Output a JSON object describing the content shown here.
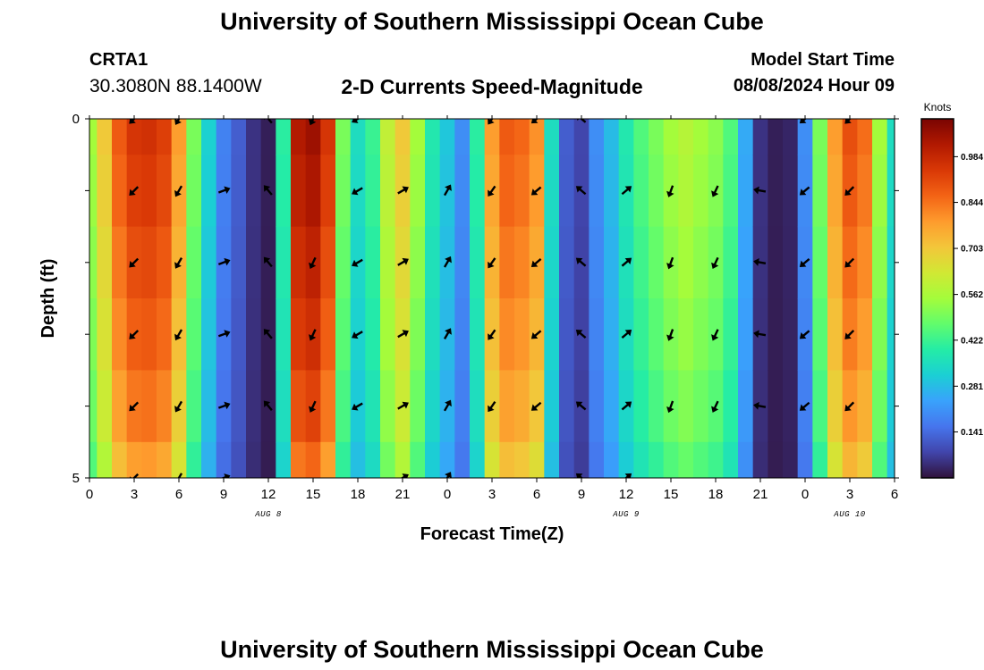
{
  "header": {
    "title": "University of Southern Mississippi Ocean Cube",
    "station": "CRTA1",
    "coordinates": "30.3080N  88.1400W",
    "subtitle": "2-D Currents Speed-Magnitude",
    "model_start_label": "Model Start Time",
    "model_start_value": "08/08/2024 Hour 09"
  },
  "footer": {
    "title": "University of Southern Mississippi Ocean Cube"
  },
  "colors": {
    "colormap": [
      "#30123b",
      "#4145ab",
      "#4675ed",
      "#39a2fc",
      "#1bcfd4",
      "#24eca6",
      "#61fc6c",
      "#a4fc3b",
      "#d1e834",
      "#f3c63a",
      "#fe9b2d",
      "#f36315",
      "#d93806",
      "#b11901",
      "#7a0402"
    ]
  },
  "chart_data": {
    "type": "heatmap",
    "title": "2-D Currents Speed-Magnitude",
    "xlabel": "Forecast Time(Z)",
    "ylabel": "Depth (ft)",
    "x_ticks": [
      "0",
      "3",
      "6",
      "9",
      "12",
      "15",
      "18",
      "21",
      "0",
      "3",
      "6",
      "9",
      "12",
      "15",
      "18",
      "21",
      "0",
      "3",
      "6"
    ],
    "x_tick_hours": [
      0,
      3,
      6,
      9,
      12,
      15,
      18,
      21,
      24,
      27,
      30,
      33,
      36,
      39,
      42,
      45,
      48,
      51,
      54
    ],
    "date_labels": [
      {
        "label": "AUG 8",
        "hour": 12
      },
      {
        "label": "AUG 9",
        "hour": 36
      },
      {
        "label": "AUG 10",
        "hour": 51
      }
    ],
    "xlim": [
      0,
      54
    ],
    "y_ticks": [
      "0",
      "5"
    ],
    "ylim": [
      0,
      5
    ],
    "colorbar": {
      "unit": "Knots",
      "ticks": [
        "0.984",
        "0.844",
        "0.703",
        "0.562",
        "0.422",
        "0.281",
        "0.141"
      ],
      "tick_values": [
        0.984,
        0.844,
        0.703,
        0.562,
        0.422,
        0.281,
        0.141
      ],
      "range": [
        0,
        1.1
      ]
    },
    "hours": [
      0,
      1,
      2,
      3,
      4,
      5,
      6,
      7,
      8,
      9,
      10,
      11,
      12,
      13,
      14,
      15,
      16,
      17,
      18,
      19,
      20,
      21,
      22,
      23,
      24,
      25,
      26,
      27,
      28,
      29,
      30,
      31,
      32,
      33,
      34,
      35,
      36,
      37,
      38,
      39,
      40,
      41,
      42,
      43,
      44,
      45,
      46,
      47,
      48,
      49,
      50,
      51,
      52,
      53,
      54
    ],
    "depth_levels": [
      0,
      1,
      2,
      3,
      4,
      5
    ],
    "surface_speed_knots": [
      0.55,
      0.7,
      0.88,
      0.95,
      0.96,
      0.93,
      0.78,
      0.5,
      0.32,
      0.18,
      0.12,
      0.05,
      0.02,
      0.4,
      1.02,
      1.05,
      0.95,
      0.5,
      0.35,
      0.42,
      0.6,
      0.7,
      0.55,
      0.38,
      0.3,
      0.2,
      0.4,
      0.78,
      0.88,
      0.86,
      0.8,
      0.35,
      0.12,
      0.08,
      0.2,
      0.28,
      0.38,
      0.45,
      0.5,
      0.55,
      0.58,
      0.55,
      0.52,
      0.45,
      0.25,
      0.05,
      0.02,
      0.03,
      0.2,
      0.5,
      0.78,
      0.9,
      0.85,
      0.55,
      0.35
    ],
    "depth_speed_factor": [
      1.0,
      0.98,
      0.95,
      0.92,
      0.88,
      0.82
    ],
    "vectors": [
      {
        "hour": 3,
        "depths": [
          0,
          1,
          2,
          3,
          4,
          5
        ],
        "dir_deg": 135
      },
      {
        "hour": 6,
        "depths": [
          0,
          1,
          2,
          3,
          4,
          5
        ],
        "dir_deg": 120
      },
      {
        "hour": 9,
        "depths": [
          1,
          2,
          3,
          4,
          5
        ],
        "dir_deg": -20
      },
      {
        "hour": 12,
        "depths": [
          0,
          1,
          2,
          3,
          4
        ],
        "dir_deg": 230
      },
      {
        "hour": 15,
        "depths": [
          0,
          2,
          3,
          4
        ],
        "dir_deg": 115
      },
      {
        "hour": 18,
        "depths": [
          0,
          1,
          2,
          3,
          4
        ],
        "dir_deg": 150
      },
      {
        "hour": 21,
        "depths": [
          1,
          2,
          3,
          4,
          5
        ],
        "dir_deg": -30
      },
      {
        "hour": 24,
        "depths": [
          1,
          2,
          3,
          4,
          5
        ],
        "dir_deg": -60
      },
      {
        "hour": 27,
        "depths": [
          0,
          1,
          2,
          3,
          4
        ],
        "dir_deg": 125
      },
      {
        "hour": 30,
        "depths": [
          0,
          1,
          2,
          3,
          4
        ],
        "dir_deg": 140
      },
      {
        "hour": 33,
        "depths": [
          0,
          1,
          2,
          3,
          4,
          5
        ],
        "dir_deg": 220
      },
      {
        "hour": 36,
        "depths": [
          1,
          2,
          3,
          4,
          5
        ],
        "dir_deg": -40
      },
      {
        "hour": 39,
        "depths": [
          1,
          2,
          3,
          4
        ],
        "dir_deg": 110
      },
      {
        "hour": 42,
        "depths": [
          1,
          2,
          3,
          4
        ],
        "dir_deg": 115
      },
      {
        "hour": 45,
        "depths": [
          1,
          2,
          3,
          4
        ],
        "dir_deg": 190
      },
      {
        "hour": 48,
        "depths": [
          0,
          1,
          2,
          3,
          4
        ],
        "dir_deg": 140
      },
      {
        "hour": 51,
        "depths": [
          0,
          1,
          2,
          3,
          4
        ],
        "dir_deg": 135
      }
    ]
  }
}
